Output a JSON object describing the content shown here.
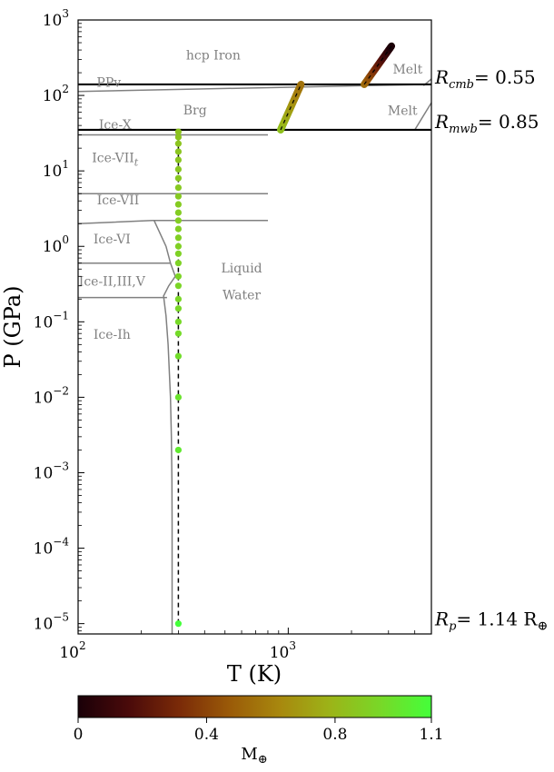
{
  "chart_data": {
    "type": "scatter",
    "title": "",
    "xlabel": "T (K)",
    "ylabel": "P (GPa)",
    "xscale": "log",
    "yscale": "log",
    "xlim": [
      100,
      4800
    ],
    "ylim": [
      7.3e-06,
      1000
    ],
    "x_ticks": [
      {
        "value": 100,
        "base": "10",
        "exp": "2"
      },
      {
        "value": 1000,
        "base": "10",
        "exp": "3"
      }
    ],
    "y_ticks": [
      {
        "value": 1e-05,
        "base": "10",
        "exp": "−5"
      },
      {
        "value": 0.0001,
        "base": "10",
        "exp": "−4"
      },
      {
        "value": 0.001,
        "base": "10",
        "exp": "−3"
      },
      {
        "value": 0.01,
        "base": "10",
        "exp": "−2"
      },
      {
        "value": 0.1,
        "base": "10",
        "exp": "−1"
      },
      {
        "value": 1,
        "base": "10",
        "exp": "0"
      },
      {
        "value": 10,
        "base": "10",
        "exp": "1"
      },
      {
        "value": 100,
        "base": "10",
        "exp": "2"
      },
      {
        "value": 1000,
        "base": "10",
        "exp": "3"
      }
    ],
    "region_labels": [
      {
        "text": "hcp Iron",
        "T": 440,
        "P": 300
      },
      {
        "text": "PPv",
        "T": 140,
        "P": 130
      },
      {
        "text": "Brg",
        "T": 360,
        "P": 56
      },
      {
        "text": "Melt",
        "T": 3700,
        "P": 195
      },
      {
        "text": "Melt",
        "T": 3500,
        "P": 55
      },
      {
        "text": "Ice-X",
        "T": 150,
        "P": 36
      },
      {
        "text": "Ice-VII",
        "T": 150,
        "P": 13,
        "sub": "t"
      },
      {
        "text": "Ice-VII",
        "T": 155,
        "P": 3.6
      },
      {
        "text": "Ice-VI",
        "T": 145,
        "P": 1.1
      },
      {
        "text": "Ice-II,III,V",
        "T": 145,
        "P": 0.3
      },
      {
        "text": "Liquid",
        "T": 600,
        "P": 0.45
      },
      {
        "text": "Water",
        "T": 600,
        "P": 0.2
      },
      {
        "text": "Ice-Ih",
        "T": 145,
        "P": 0.06
      }
    ],
    "phase_boundaries": [
      {
        "T": [
          100,
          4800
        ],
        "P": [
          113,
          140
        ]
      },
      {
        "T": [
          4000,
          4800
        ],
        "P": [
          35,
          80
        ]
      },
      {
        "T": [
          4400,
          4800
        ],
        "P": [
          135,
          165
        ]
      },
      {
        "T": [
          100,
          800
        ],
        "P": [
          30,
          30
        ]
      },
      {
        "T": [
          100,
          800
        ],
        "P": [
          5,
          5
        ]
      },
      {
        "T": [
          100,
          225,
          800
        ],
        "P": [
          2,
          2.2,
          2.2
        ]
      },
      {
        "T": [
          100,
          275
        ],
        "P": [
          0.6,
          0.6
        ]
      },
      {
        "T": [
          100,
          265
        ],
        "P": [
          0.21,
          0.21
        ]
      },
      {
        "T": [
          230,
          262,
          275,
          290
        ],
        "P": [
          2.2,
          1.0,
          0.6,
          0.4
        ]
      },
      {
        "T": [
          290,
          270,
          255,
          262,
          268,
          275,
          278,
          279.5,
          280,
          280,
          280
        ],
        "P": [
          0.4,
          0.3,
          0.22,
          0.12,
          0.05,
          0.01,
          0.003,
          0.0008,
          0.0002,
          3e-05,
          7.3e-06
        ]
      }
    ],
    "pressure_markers": [
      {
        "P": 140,
        "label": "R",
        "sub": "cmb",
        "value": "= 0.55"
      },
      {
        "P": 35,
        "label": "R",
        "sub": "mwb",
        "value": "= 0.85"
      }
    ],
    "surface_label": {
      "label": "R",
      "sub": "p",
      "value": "= 1.14 R",
      "unit": "⊕"
    },
    "profile": {
      "segments": [
        {
          "layer": "core",
          "T": [
            2300,
            3100
          ],
          "P": [
            140,
            450
          ],
          "M": [
            0.55,
            0.0
          ]
        },
        {
          "layer": "mantle",
          "T": [
            920,
            1150
          ],
          "P": [
            35,
            140
          ],
          "M": [
            0.85,
            0.55
          ]
        },
        {
          "layer": "water",
          "T": [
            300,
            300
          ],
          "P": [
            1e-05,
            35
          ],
          "M": [
            1.1,
            0.85
          ]
        }
      ],
      "water_points_P": [
        1e-05,
        0.002,
        0.01,
        0.035,
        0.07,
        0.1,
        0.15,
        0.2,
        0.3,
        0.4,
        0.6,
        0.8,
        1.0,
        1.3,
        1.7,
        2.2,
        2.8,
        3.6,
        4.6,
        6,
        8,
        10.5,
        14,
        18,
        23,
        28,
        33
      ]
    },
    "colorbar": {
      "label": "M",
      "label_sub": "⊕",
      "range": [
        0,
        1.1
      ],
      "ticks": [
        0,
        0.4,
        0.8,
        1.1
      ],
      "tick_labels": [
        "0",
        "0.4",
        "0.8",
        "1.1"
      ],
      "colors": [
        "#1a0008",
        "#4a0a0a",
        "#7a2a08",
        "#9a5a08",
        "#a8880e",
        "#9cb418",
        "#78d828",
        "#44ff3a"
      ]
    }
  }
}
